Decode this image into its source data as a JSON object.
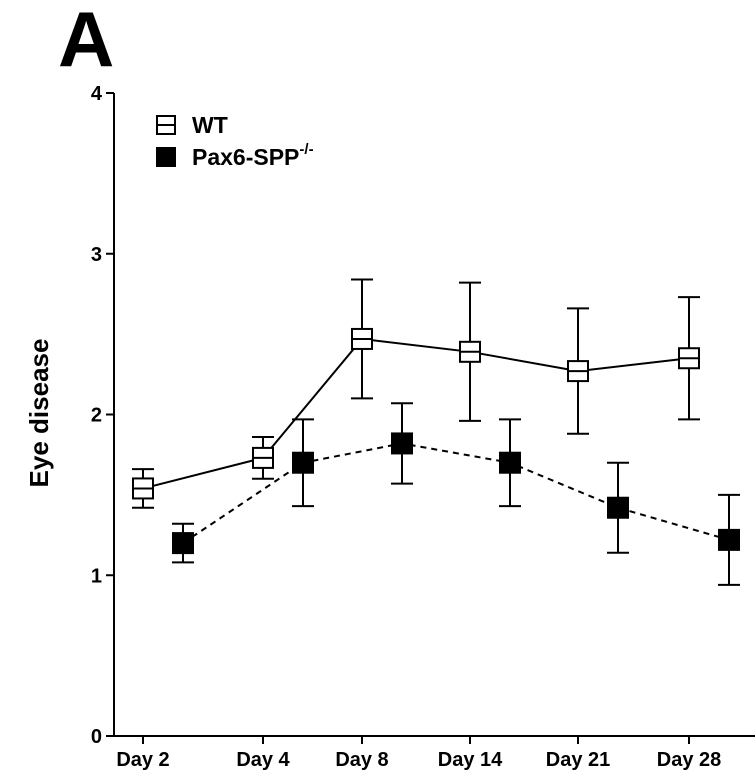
{
  "panel_label": "A",
  "chart_data": {
    "type": "line",
    "title": "",
    "xlabel": "",
    "ylabel": "Eye disease",
    "ylim": [
      0,
      4
    ],
    "yticks": [
      0,
      1,
      2,
      3,
      4
    ],
    "categories": [
      "Day 2",
      "Day 4",
      "Day 8",
      "Day 14",
      "Day 21",
      "Day 28"
    ],
    "legend_position": "top-left",
    "grid": false,
    "series": [
      {
        "name": "WT",
        "marker": "open-square",
        "line_style": "solid",
        "color": "#000000",
        "values": [
          1.54,
          1.73,
          2.47,
          2.39,
          2.27,
          2.35
        ],
        "error": [
          0.12,
          0.13,
          0.37,
          0.43,
          0.39,
          0.38
        ]
      },
      {
        "name": "Pax6-SPP",
        "name_superscript": "-/-",
        "marker": "filled-square",
        "line_style": "dashed",
        "color": "#000000",
        "values": [
          1.2,
          1.7,
          1.82,
          1.7,
          1.42,
          1.22
        ],
        "error": [
          0.12,
          0.27,
          0.25,
          0.27,
          0.28,
          0.28
        ]
      }
    ]
  }
}
